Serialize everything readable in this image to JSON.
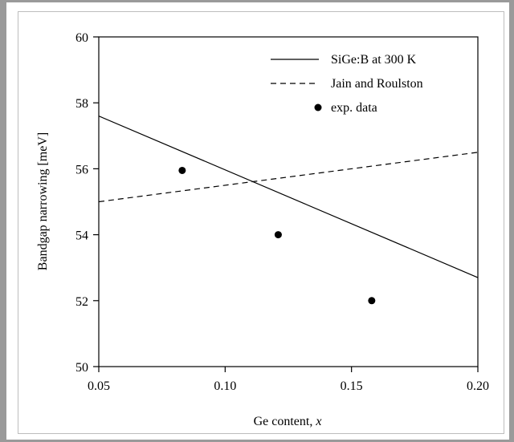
{
  "chart_data": {
    "type": "line",
    "xlabel": "Ge content, ",
    "xlabel_var": "x",
    "ylabel": "Bandgap narrowing [meV]",
    "xlim": [
      0.05,
      0.2
    ],
    "ylim": [
      50,
      60
    ],
    "xticks": [
      0.05,
      0.1,
      0.15,
      0.2
    ],
    "xtick_labels": [
      "0.05",
      "0.10",
      "0.15",
      "0.20"
    ],
    "yticks": [
      50,
      52,
      54,
      56,
      58,
      60
    ],
    "ytick_labels": [
      "50",
      "52",
      "54",
      "56",
      "58",
      "60"
    ],
    "grid": false,
    "legend_position": "top-right",
    "series": [
      {
        "name": "SiGe:B at 300 K",
        "style": "solid",
        "x": [
          0.05,
          0.2
        ],
        "y": [
          57.6,
          52.7
        ]
      },
      {
        "name": "Jain and Roulston",
        "style": "dashed",
        "x": [
          0.05,
          0.2
        ],
        "y": [
          55.0,
          56.5
        ]
      },
      {
        "name": "exp. data",
        "style": "marker",
        "x": [
          0.083,
          0.121,
          0.158
        ],
        "y": [
          55.95,
          54.0,
          52.0
        ]
      }
    ]
  }
}
